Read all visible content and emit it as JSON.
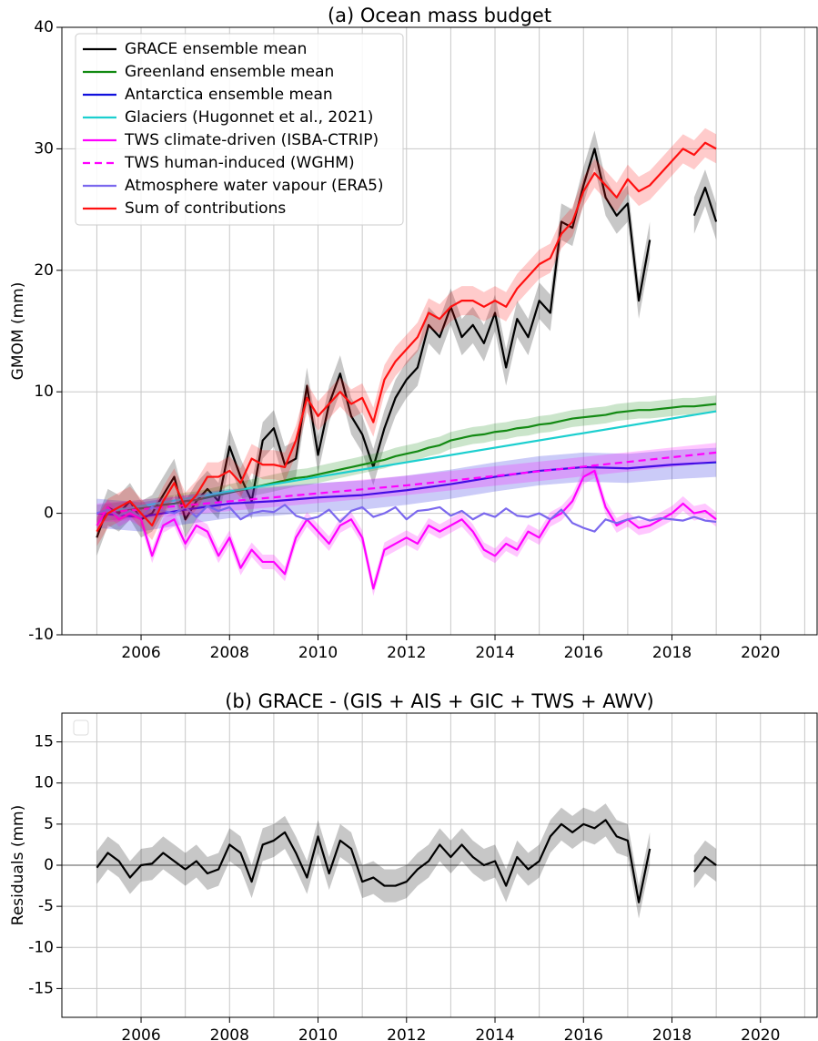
{
  "chart_data": [
    {
      "type": "line",
      "title": "(a) Ocean mass budget",
      "ylabel": "GMOM (mm)",
      "x": [
        2005,
        2005.25,
        2005.5,
        2005.75,
        2006,
        2006.25,
        2006.5,
        2006.75,
        2007,
        2007.25,
        2007.5,
        2007.75,
        2008,
        2008.25,
        2008.5,
        2008.75,
        2009,
        2009.25,
        2009.5,
        2009.75,
        2010,
        2010.25,
        2010.5,
        2010.75,
        2011,
        2011.25,
        2011.5,
        2011.75,
        2012,
        2012.25,
        2012.5,
        2012.75,
        2013,
        2013.25,
        2013.5,
        2013.75,
        2014,
        2014.25,
        2014.5,
        2014.75,
        2015,
        2015.25,
        2015.5,
        2015.75,
        2016,
        2016.25,
        2016.5,
        2016.75,
        2017,
        2017.25,
        2017.5,
        2017.75,
        2018,
        2018.25,
        2018.5,
        2018.75,
        2019
      ],
      "xlim": [
        2004.21,
        2021.28
      ],
      "xticks": [
        2006,
        2008,
        2010,
        2012,
        2014,
        2016,
        2018,
        2020
      ],
      "xminorticks": [
        2005,
        2007,
        2009,
        2011,
        2013,
        2015,
        2017,
        2019,
        2021
      ],
      "ylim": [
        -10,
        40
      ],
      "yticks": [
        -10,
        0,
        10,
        20,
        30,
        40
      ],
      "grid": true,
      "legend": "upper left",
      "series": [
        {
          "name": "GRACE ensemble mean",
          "color": "#000000",
          "error": 1.5,
          "values": [
            -2,
            0.5,
            0,
            1,
            -0.5,
            0,
            1.5,
            3,
            -0.5,
            1,
            2,
            1,
            5.5,
            3,
            1,
            6,
            7,
            4,
            4.5,
            10.5,
            4.8,
            9,
            11.5,
            8,
            6.5,
            3.8,
            7,
            9.5,
            11,
            12,
            15.5,
            14.5,
            17,
            14.5,
            15.5,
            14,
            16.5,
            12,
            16,
            14.5,
            17.5,
            16.5,
            24,
            23.5,
            27,
            30,
            26,
            24.5,
            25.5,
            17.5,
            22.5,
            null,
            null,
            null,
            24.5,
            26.8,
            24
          ]
        },
        {
          "name": "Greenland ensemble mean",
          "color": "#138a13",
          "error": 0.7,
          "values": [
            0,
            0.1,
            0.2,
            0.3,
            0.4,
            0.5,
            0.7,
            0.8,
            1,
            1.1,
            1.3,
            1.5,
            1.7,
            1.9,
            2.1,
            2.3,
            2.5,
            2.7,
            2.9,
            3,
            3.2,
            3.4,
            3.6,
            3.8,
            4,
            4.2,
            4.4,
            4.7,
            4.9,
            5.1,
            5.4,
            5.6,
            6,
            6.2,
            6.4,
            6.5,
            6.7,
            6.8,
            7,
            7.1,
            7.3,
            7.4,
            7.6,
            7.8,
            7.9,
            8,
            8.1,
            8.3,
            8.4,
            8.5,
            8.5,
            8.6,
            8.7,
            8.8,
            8.8,
            8.9,
            9
          ]
        },
        {
          "name": "Antarctica ensemble mean",
          "color": "#1010dd",
          "error": 1.2,
          "x": [
            2005,
            2006,
            2007,
            2008,
            2009,
            2010,
            2011,
            2012,
            2013,
            2014,
            2015,
            2016,
            2017,
            2018,
            2019
          ],
          "values": [
            0,
            -0.3,
            0.3,
            0.8,
            1,
            1.3,
            1.5,
            1.9,
            2.4,
            3,
            3.5,
            3.8,
            3.7,
            4,
            4.2
          ]
        },
        {
          "name": "Glaciers (Hugonnet et al., 2021)",
          "color": "#1ccfcf",
          "x": [
            2005,
            2019
          ],
          "values": [
            0,
            8.4
          ]
        },
        {
          "name": "TWS climate-driven (ISBA-CTRIP)",
          "color": "#ff00ff",
          "error": 0.6,
          "values": [
            -1,
            0.5,
            -0.5,
            0,
            -0.5,
            -3.5,
            -1,
            -0.5,
            -2.5,
            -1,
            -1.5,
            -3.5,
            -2,
            -4.5,
            -3,
            -4,
            -4,
            -5,
            -2,
            -0.5,
            -1.5,
            -2.5,
            -1,
            -0.5,
            -2,
            -6.2,
            -3,
            -2.5,
            -2,
            -2.5,
            -1,
            -1.5,
            -1,
            -0.5,
            -1.5,
            -3,
            -3.5,
            -2.5,
            -3,
            -1.5,
            -2,
            -0.5,
            0,
            1,
            3,
            3.5,
            0.5,
            -1,
            -0.5,
            -1.2,
            -1,
            -0.5,
            0,
            0.8,
            0,
            0.2,
            -0.5
          ]
        },
        {
          "name": "TWS human-induced (WGHM)",
          "color": "#ff00ff",
          "linestyle": "dashed",
          "error": 0.8,
          "x": [
            2005,
            2012,
            2019
          ],
          "values": [
            0,
            2.3,
            5
          ]
        },
        {
          "name": "Atmosphere water vapour (ERA5)",
          "color": "#7b68ee",
          "values": [
            0,
            0.3,
            -0.2,
            0.2,
            -0.3,
            0.5,
            0.2,
            0,
            0.5,
            -0.3,
            0.6,
            0.2,
            0.5,
            -0.5,
            0,
            0.2,
            0.1,
            0.7,
            -0.2,
            -0.5,
            -0.3,
            0.3,
            -0.7,
            0.2,
            0.5,
            -0.3,
            0,
            0.5,
            -0.5,
            0.2,
            0.3,
            0.5,
            -0.2,
            0.2,
            -0.5,
            0,
            -0.3,
            0.4,
            -0.2,
            -0.3,
            0,
            -0.5,
            0.3,
            -0.8,
            -1.2,
            -1.5,
            -0.5,
            -0.8,
            -0.5,
            -0.3,
            -0.6,
            -0.4,
            -0.5,
            -0.6,
            -0.3,
            -0.6,
            -0.7
          ]
        },
        {
          "name": "Sum of contributions",
          "color": "#ff1010",
          "error": 1.2,
          "values": [
            -1.5,
            0,
            0.5,
            1,
            0,
            -1,
            1,
            2.5,
            0.5,
            1.5,
            3,
            3,
            3.5,
            2.5,
            4.5,
            4,
            4,
            3.8,
            6,
            9.5,
            8,
            9,
            10,
            9,
            9.5,
            7.5,
            11,
            12.5,
            13.5,
            14.5,
            16.5,
            16,
            17,
            17.5,
            17.5,
            17,
            17.5,
            17,
            18.5,
            19.5,
            20.5,
            21,
            23,
            24,
            26.5,
            28,
            27,
            26,
            27.5,
            26.5,
            27,
            28,
            29,
            30,
            29.5,
            30.5,
            30
          ]
        }
      ]
    },
    {
      "type": "line",
      "title": "(b) GRACE - (GIS + AIS + GIC + TWS + AWV)",
      "ylabel": "Residuals (mm)",
      "x": [
        2005,
        2005.25,
        2005.5,
        2005.75,
        2006,
        2006.25,
        2006.5,
        2006.75,
        2007,
        2007.25,
        2007.5,
        2007.75,
        2008,
        2008.25,
        2008.5,
        2008.75,
        2009,
        2009.25,
        2009.5,
        2009.75,
        2010,
        2010.25,
        2010.5,
        2010.75,
        2011,
        2011.25,
        2011.5,
        2011.75,
        2012,
        2012.25,
        2012.5,
        2012.75,
        2013,
        2013.25,
        2013.5,
        2013.75,
        2014,
        2014.25,
        2014.5,
        2014.75,
        2015,
        2015.25,
        2015.5,
        2015.75,
        2016,
        2016.25,
        2016.5,
        2016.75,
        2017,
        2017.25,
        2017.5,
        2017.75,
        2018,
        2018.25,
        2018.5,
        2018.75,
        2019
      ],
      "xlim": [
        2004.21,
        2021.28
      ],
      "xticks": [
        2006,
        2008,
        2010,
        2012,
        2014,
        2016,
        2018,
        2020
      ],
      "xminorticks": [
        2005,
        2007,
        2009,
        2011,
        2013,
        2015,
        2017,
        2019,
        2021
      ],
      "ylim": [
        -18.5,
        18.5
      ],
      "yticks": [
        -15,
        -10,
        -5,
        0,
        5,
        10,
        15
      ],
      "grid": true,
      "hline": 0,
      "series": [
        {
          "color": "#000000",
          "error": 2,
          "values": [
            -0.3,
            1.5,
            0.5,
            -1.5,
            0,
            0.2,
            1.5,
            0.5,
            -0.5,
            0.5,
            -1,
            -0.5,
            2.5,
            1.5,
            -2,
            2.5,
            3,
            4,
            1.5,
            -1.5,
            3.5,
            -1,
            3,
            2,
            -2,
            -1.5,
            -2.5,
            -2.5,
            -2,
            -0.5,
            0.5,
            2.5,
            1,
            2.5,
            1,
            0,
            0.5,
            -2.5,
            1,
            -0.5,
            0.5,
            3.5,
            5,
            4,
            5,
            4.5,
            5.5,
            3.5,
            3,
            -4.5,
            2,
            null,
            null,
            null,
            -0.8,
            1,
            0
          ]
        }
      ]
    }
  ]
}
